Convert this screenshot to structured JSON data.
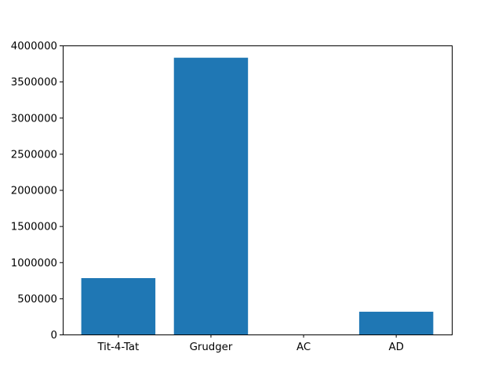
{
  "chart_data": {
    "type": "bar",
    "categories": [
      "Tit-4-Tat",
      "Grudger",
      "AC",
      "AD"
    ],
    "values": [
      780000,
      3830000,
      0,
      315000
    ],
    "ylim": [
      0,
      4000000
    ],
    "yticks": [
      0,
      500000,
      1000000,
      1500000,
      2000000,
      2500000,
      3000000,
      3500000,
      4000000
    ],
    "ytick_labels": [
      "0",
      "500000",
      "1000000",
      "1500000",
      "2000000",
      "2500000",
      "3000000",
      "3500000",
      "4000000"
    ],
    "title": "",
    "xlabel": "",
    "ylabel": "",
    "grid": false,
    "bar_color": "#1f77b4"
  }
}
